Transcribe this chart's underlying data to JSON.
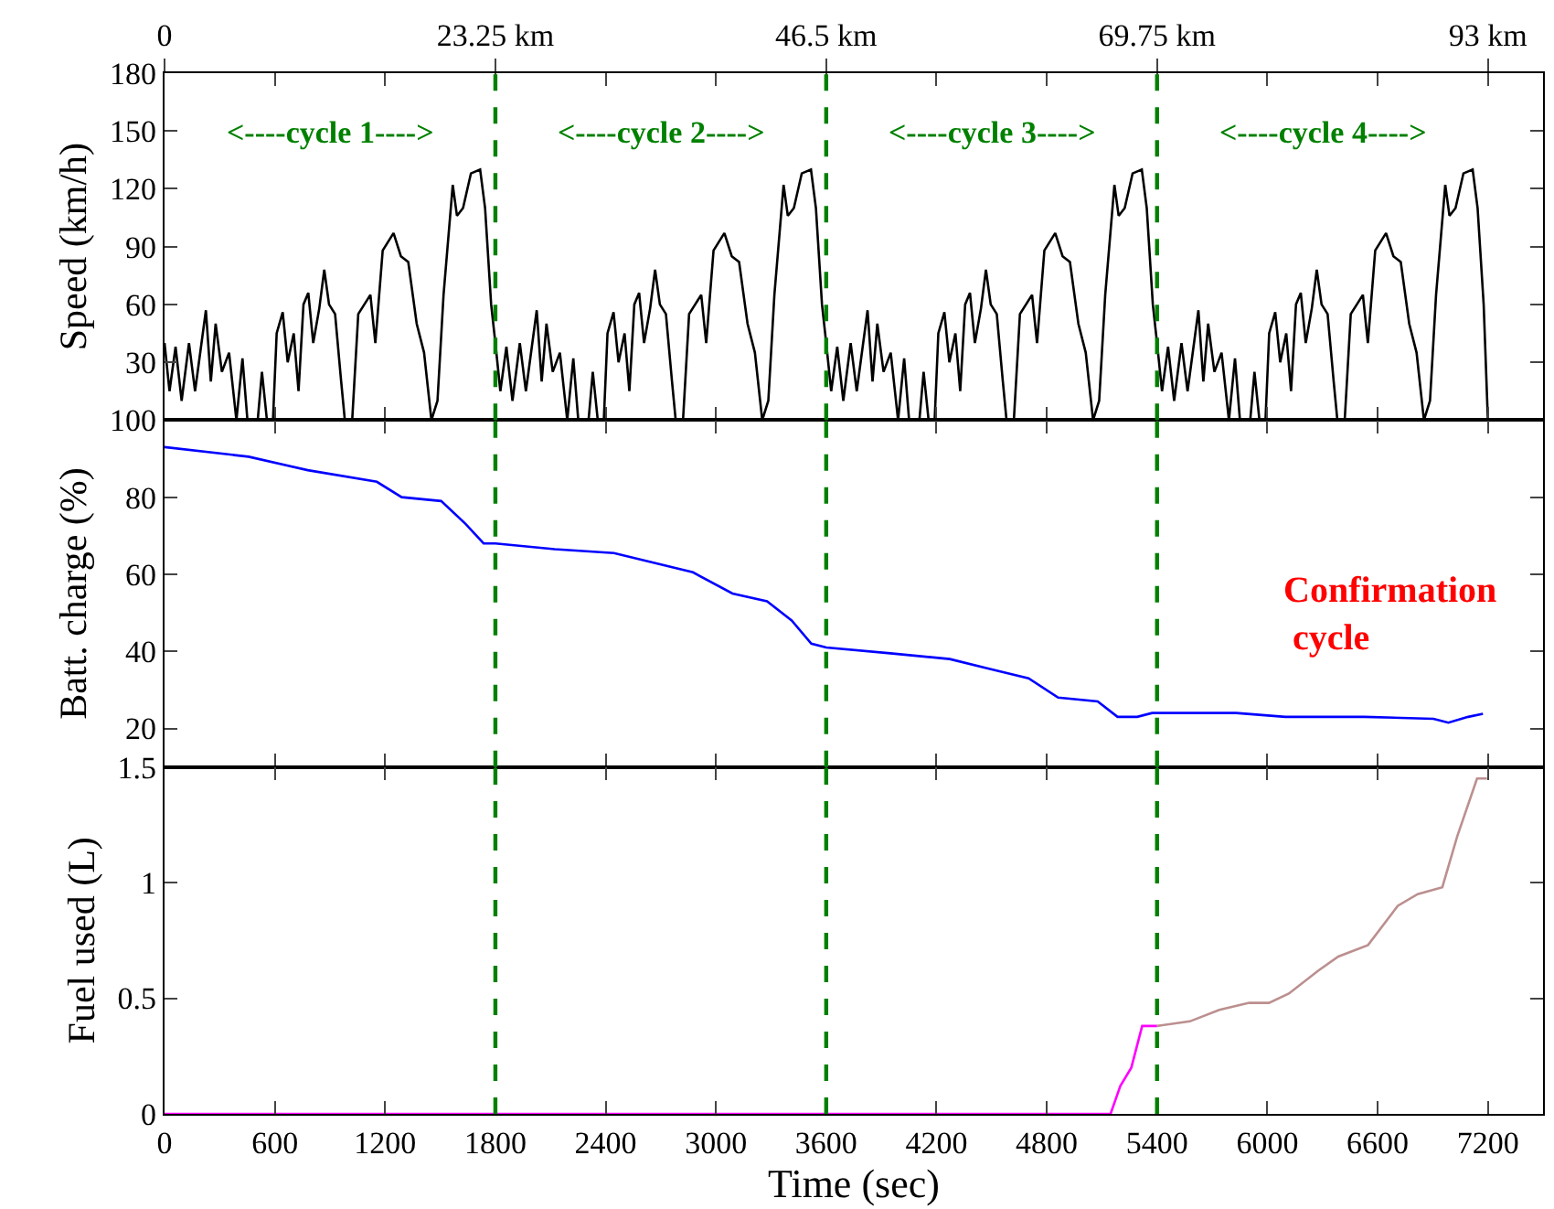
{
  "chart_data": [
    {
      "type": "line",
      "ylabel": "Speed (km/h)",
      "xlim": [
        0,
        7500
      ],
      "xticks": [
        0,
        600,
        1200,
        1800,
        2400,
        3000,
        3600,
        4200,
        4800,
        5400,
        6000,
        6600,
        7200
      ],
      "ylim": [
        0,
        180
      ],
      "yticks": [
        30,
        60,
        90,
        120,
        150,
        180
      ],
      "x2lim": [
        0,
        96.875
      ],
      "x2ticks": [
        0,
        {
          "value": 23.25,
          "label": "23.25 km"
        },
        {
          "value": 46.5,
          "label": "46.5 km"
        },
        {
          "value": 69.75,
          "label": "69.75 km"
        },
        {
          "value": 93,
          "label": "93 km"
        }
      ],
      "tick_labels": "y",
      "grid": false,
      "marker": "none",
      "line_style": "solid",
      "series": [
        {
          "color": "#000000",
          "x": [
            0,
            27,
            60,
            93,
            133,
            166,
            225,
            252,
            278,
            312,
            351,
            391,
            424,
            451,
            507,
            530,
            557,
            590,
            610,
            643,
            670,
            703,
            729,
            756,
            782,
            809,
            842,
            869,
            895,
            928,
            961,
            981,
            1021,
            1054,
            1087,
            1120,
            1147,
            1187,
            1246,
            1286,
            1326,
            1372,
            1412,
            1452,
            1485,
            1518,
            1568,
            1591,
            1624,
            1667,
            1717,
            1744,
            1777,
            1800,
            1827,
            1860,
            1893,
            1933,
            1966,
            2025,
            2052,
            2078,
            2112,
            2151,
            2191,
            2224,
            2251,
            2307,
            2330,
            2357,
            2390,
            2410,
            2443,
            2470,
            2503,
            2529,
            2556,
            2582,
            2609,
            2642,
            2669,
            2695,
            2728,
            2761,
            2781,
            2821,
            2854,
            2887,
            2920,
            2947,
            2987,
            3046,
            3086,
            3126,
            3172,
            3212,
            3252,
            3285,
            3318,
            3368,
            3391,
            3424,
            3467,
            3517,
            3544,
            3577,
            3600,
            3627,
            3660,
            3693,
            3733,
            3766,
            3825,
            3852,
            3878,
            3912,
            3951,
            3991,
            4024,
            4051,
            4107,
            4130,
            4157,
            4190,
            4210,
            4243,
            4270,
            4303,
            4329,
            4356,
            4382,
            4409,
            4442,
            4469,
            4495,
            4528,
            4561,
            4581,
            4621,
            4654,
            4687,
            4720,
            4747,
            4787,
            4846,
            4886,
            4926,
            4972,
            5012,
            5052,
            5085,
            5118,
            5168,
            5191,
            5224,
            5267,
            5317,
            5344,
            5377,
            5400,
            5427,
            5460,
            5493,
            5533,
            5566,
            5625,
            5652,
            5678,
            5712,
            5751,
            5791,
            5824,
            5851,
            5907,
            5930,
            5957,
            5990,
            6010,
            6043,
            6070,
            6103,
            6129,
            6156,
            6182,
            6209,
            6242,
            6269,
            6295,
            6328,
            6361,
            6381,
            6421,
            6454,
            6487,
            6520,
            6547,
            6587,
            6646,
            6686,
            6726,
            6772,
            6812,
            6852,
            6885,
            6918,
            6968,
            6991,
            7024,
            7067,
            7117,
            7144,
            7177,
            7200
          ],
          "values": [
            40,
            15,
            38,
            10,
            40,
            15,
            57,
            20,
            50,
            25,
            35,
            0,
            32,
            0,
            0,
            25,
            0,
            0,
            45,
            56,
            30,
            45,
            15,
            60,
            66,
            40,
            58,
            78,
            60,
            55,
            20,
            0,
            0,
            55,
            60,
            65,
            40,
            88,
            97,
            85,
            82,
            50,
            35,
            0,
            10,
            65,
            122,
            106,
            110,
            128,
            130,
            110,
            60,
            40,
            15,
            38,
            10,
            40,
            15,
            57,
            20,
            50,
            25,
            35,
            0,
            32,
            0,
            0,
            25,
            0,
            0,
            45,
            56,
            30,
            45,
            15,
            60,
            66,
            40,
            58,
            78,
            60,
            55,
            20,
            0,
            0,
            55,
            60,
            65,
            40,
            88,
            97,
            85,
            82,
            50,
            35,
            0,
            10,
            65,
            122,
            106,
            110,
            128,
            130,
            110,
            60,
            40,
            15,
            38,
            10,
            40,
            15,
            57,
            20,
            50,
            25,
            35,
            0,
            32,
            0,
            0,
            25,
            0,
            0,
            45,
            56,
            30,
            45,
            15,
            60,
            66,
            40,
            58,
            78,
            60,
            55,
            20,
            0,
            0,
            55,
            60,
            65,
            40,
            88,
            97,
            85,
            82,
            50,
            35,
            0,
            10,
            65,
            122,
            106,
            110,
            128,
            130,
            110,
            60,
            40,
            15,
            38,
            10,
            40,
            15,
            57,
            20,
            50,
            25,
            35,
            0,
            32,
            0,
            0,
            25,
            0,
            0,
            45,
            56,
            30,
            45,
            15,
            60,
            66,
            40,
            58,
            78,
            60,
            55,
            20,
            0,
            0,
            55,
            60,
            65,
            40,
            88,
            97,
            85,
            82,
            50,
            35,
            0,
            10,
            65,
            122,
            106,
            110,
            128,
            130,
            110,
            60,
            0
          ]
        }
      ],
      "ref_lines": [
        {
          "axis": "x",
          "value": 1800,
          "color": "#008000",
          "line_style": "dashed"
        },
        {
          "axis": "x",
          "value": 3600,
          "color": "#008000",
          "line_style": "dashed"
        },
        {
          "axis": "x",
          "value": 5400,
          "color": "#008000",
          "line_style": "dashed"
        }
      ],
      "annotations": [
        "<----cycle 1---->",
        "<----cycle 2---->",
        "<----cycle 3---->",
        "<----cycle 4---->"
      ]
    },
    {
      "type": "line",
      "ylabel": "Batt. charge (%)",
      "xlim": [
        0,
        7500
      ],
      "xticks": [
        0,
        600,
        1200,
        1800,
        2400,
        3000,
        3600,
        4200,
        4800,
        5400,
        6000,
        6600,
        7200
      ],
      "ylim": [
        10,
        100
      ],
      "yticks": [
        20,
        40,
        60,
        80,
        100
      ],
      "tick_labels": "y",
      "grid": false,
      "marker": "none",
      "line_style": "solid",
      "series": [
        {
          "color": "#0000ff",
          "x": [
            0,
            457,
            779,
            1155,
            1290,
            1505,
            1639,
            1736,
            1800,
            2122,
            2445,
            2660,
            2875,
            3090,
            3278,
            3412,
            3519,
            3600,
            3949,
            4272,
            4486,
            4701,
            4862,
            5077,
            5185,
            5292,
            5373,
            5830,
            6098,
            6528,
            6904,
            6985,
            7093,
            7173
          ],
          "values": [
            93,
            90.5,
            87,
            84,
            80,
            79,
            73,
            68,
            68,
            66.5,
            65.5,
            63,
            60.5,
            55,
            53,
            48,
            42,
            41,
            39.5,
            38,
            35.5,
            33,
            28,
            27,
            23,
            23,
            24,
            24,
            23,
            23,
            22.5,
            21.5,
            23,
            23.8
          ]
        }
      ],
      "ref_lines": [
        {
          "axis": "x",
          "value": 1800,
          "color": "#008000",
          "line_style": "dashed"
        },
        {
          "axis": "x",
          "value": 3600,
          "color": "#008000",
          "line_style": "dashed"
        },
        {
          "axis": "x",
          "value": 5400,
          "color": "#008000",
          "line_style": "dashed"
        }
      ],
      "annotations": [
        "Confirmation\n cycle"
      ]
    },
    {
      "type": "line",
      "xlabel": "Time (sec)",
      "ylabel": "Fuel used (L)",
      "xlim": [
        0,
        7500
      ],
      "xticks": [
        0,
        600,
        1200,
        1800,
        2400,
        3000,
        3600,
        4200,
        4800,
        5400,
        6000,
        6600,
        7200
      ],
      "ylim": [
        0,
        1.5
      ],
      "yticks": [
        0,
        0.5,
        1,
        1.5
      ],
      "grid": false,
      "marker": "none",
      "line_style": "solid",
      "series": [
        {
          "color": "#ff00ff",
          "x": [
            0,
            5147,
            5200,
            5260,
            5319,
            5400
          ],
          "values": [
            0,
            0,
            0.12,
            0.2,
            0.38,
            0.38
          ]
        },
        {
          "color": "#bc8f8f",
          "x": [
            5400,
            5578,
            5739,
            5901,
            6009,
            6117,
            6278,
            6386,
            6548,
            6710,
            6818,
            6952,
            7033,
            7141,
            7195
          ],
          "values": [
            0.38,
            0.4,
            0.45,
            0.48,
            0.48,
            0.52,
            0.62,
            0.68,
            0.73,
            0.9,
            0.95,
            0.98,
            1.2,
            1.45,
            1.45
          ]
        }
      ],
      "ref_lines": [
        {
          "axis": "x",
          "value": 1800,
          "color": "#008000",
          "line_style": "dashed"
        },
        {
          "axis": "x",
          "value": 3600,
          "color": "#008000",
          "line_style": "dashed"
        },
        {
          "axis": "x",
          "value": 5400,
          "color": "#008000",
          "line_style": "dashed"
        }
      ]
    }
  ]
}
